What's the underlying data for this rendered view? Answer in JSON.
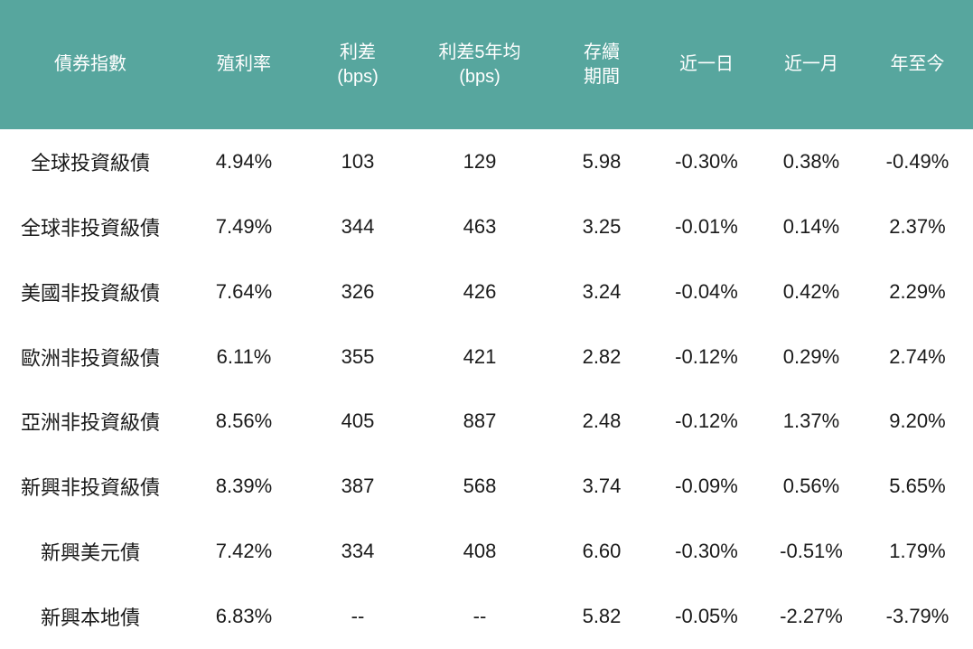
{
  "table": {
    "columns": [
      {
        "key": "index",
        "lines": [
          "債券指數"
        ]
      },
      {
        "key": "yield",
        "lines": [
          "殖利率"
        ]
      },
      {
        "key": "spread_bps",
        "lines": [
          "利差",
          "(bps)"
        ]
      },
      {
        "key": "spread_5y_avg_bps",
        "lines": [
          "利差5年均",
          "(bps)"
        ]
      },
      {
        "key": "duration",
        "lines": [
          "存續",
          "期間"
        ]
      },
      {
        "key": "past_1d",
        "lines": [
          "近一日"
        ]
      },
      {
        "key": "past_1m",
        "lines": [
          "近一月"
        ]
      },
      {
        "key": "ytd",
        "lines": [
          "年至今"
        ]
      }
    ],
    "rows": [
      {
        "cells": [
          "全球投資級債",
          "4.94%",
          "103",
          "129",
          "5.98",
          "-0.30%",
          "0.38%",
          "-0.49%"
        ]
      },
      {
        "cells": [
          "全球非投資級債",
          "7.49%",
          "344",
          "463",
          "3.25",
          "-0.01%",
          "0.14%",
          "2.37%"
        ]
      },
      {
        "cells": [
          "美國非投資級債",
          "7.64%",
          "326",
          "426",
          "3.24",
          "-0.04%",
          "0.42%",
          "2.29%"
        ]
      },
      {
        "cells": [
          "歐洲非投資級債",
          "6.11%",
          "355",
          "421",
          "2.82",
          "-0.12%",
          "0.29%",
          "2.74%"
        ]
      },
      {
        "cells": [
          "亞洲非投資級債",
          "8.56%",
          "405",
          "887",
          "2.48",
          "-0.12%",
          "1.37%",
          "9.20%"
        ]
      },
      {
        "cells": [
          "新興非投資級債",
          "8.39%",
          "387",
          "568",
          "3.74",
          "-0.09%",
          "0.56%",
          "5.65%"
        ]
      },
      {
        "cells": [
          "新興美元債",
          "7.42%",
          "334",
          "408",
          "6.60",
          "-0.30%",
          "-0.51%",
          "1.79%"
        ]
      },
      {
        "cells": [
          "新興本地債",
          "6.83%",
          "--",
          "--",
          "5.82",
          "-0.05%",
          "-2.27%",
          "-3.79%"
        ]
      }
    ]
  },
  "colors": {
    "header_background": "#57A69E",
    "header_text": "#FFFFFF",
    "positive_value": "#C00000",
    "negative_value": "#4E9B94",
    "default_text": "#1A1A1A",
    "page_background": "#FFFFFF"
  },
  "chart_data": {
    "type": "table",
    "title": "",
    "columns": [
      "債券指數",
      "殖利率",
      "利差(bps)",
      "利差5年均(bps)",
      "存續期間",
      "近一日",
      "近一月",
      "年至今"
    ],
    "rows": [
      [
        "全球投資級債",
        "4.94%",
        103,
        129,
        5.98,
        "-0.30%",
        "0.38%",
        "-0.49%"
      ],
      [
        "全球非投資級債",
        "7.49%",
        344,
        463,
        3.25,
        "-0.01%",
        "0.14%",
        "2.37%"
      ],
      [
        "美國非投資級債",
        "7.64%",
        326,
        426,
        3.24,
        "-0.04%",
        "0.42%",
        "2.29%"
      ],
      [
        "歐洲非投資級債",
        "6.11%",
        355,
        421,
        2.82,
        "-0.12%",
        "0.29%",
        "2.74%"
      ],
      [
        "亞洲非投資級債",
        "8.56%",
        405,
        887,
        2.48,
        "-0.12%",
        "1.37%",
        "9.20%"
      ],
      [
        "新興非投資級債",
        "8.39%",
        387,
        568,
        3.74,
        "-0.09%",
        "0.56%",
        "5.65%"
      ],
      [
        "新興美元債",
        "7.42%",
        334,
        408,
        6.6,
        "-0.30%",
        "-0.51%",
        "1.79%"
      ],
      [
        "新興本地債",
        "6.83%",
        "--",
        "--",
        5.82,
        "-0.05%",
        "-2.27%",
        "-3.79%"
      ]
    ],
    "layout_hints": {
      "header_fill": "#57A69E",
      "grid": false,
      "value_color_rule": "change columns (近一日/近一月/年至今): negative values teal #4E9B94, positive values red #C00000"
    }
  }
}
